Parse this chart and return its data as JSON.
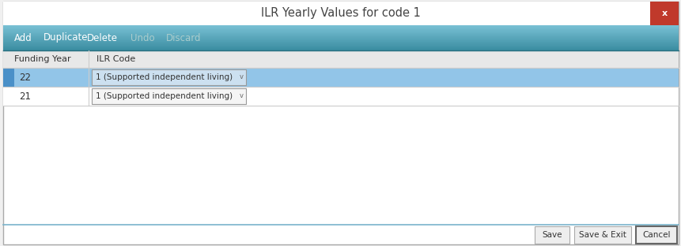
{
  "title": "ILR Yearly Values for code 1",
  "title_color": "#444444",
  "title_fontsize": 10.5,
  "fig_bg": "#f0f0f0",
  "dialog_bg": "#ffffff",
  "outer_border_color": "#aaaaaa",
  "toolbar_color_top": "#6ab4c8",
  "toolbar_color_bottom": "#3a8ca0",
  "toolbar_items": [
    "Add",
    "Duplicate",
    "Delete",
    "Undo",
    "Discard"
  ],
  "toolbar_active_colors": [
    "#ffffff",
    "#ffffff",
    "#ffffff",
    "#aacccc",
    "#aacccc"
  ],
  "col_headers": [
    "Funding Year",
    "ILR Code"
  ],
  "col_header_bg": "#e8e8e8",
  "col_header_border": "#cccccc",
  "rows": [
    {
      "year": "22",
      "code": "1 (Supported independent living)",
      "selected": true
    },
    {
      "year": "21",
      "code": "1 (Supported independent living)",
      "selected": false
    }
  ],
  "row_selected_bg": "#92c5e8",
  "row_normal_bg": "#ffffff",
  "row_border_color": "#cccccc",
  "sel_indicator_color": "#4a90c8",
  "dropdown_border": "#999999",
  "dropdown_bg_selected": "#cce0f0",
  "dropdown_bg_normal": "#f5f5f5",
  "close_btn_color": "#c0392b",
  "close_btn_x_color": "#ffffff",
  "bottom_btn_labels": [
    "Save",
    "Save & Exit",
    "Cancel"
  ],
  "bottom_btn_bg": "#eeeeee",
  "bottom_btn_border_normal": "#aaaaaa",
  "bottom_btn_border_cancel": "#666666",
  "separator_line_color": "#7ab4cc",
  "fig_width": 8.62,
  "fig_height": 3.12,
  "dpi": 100
}
